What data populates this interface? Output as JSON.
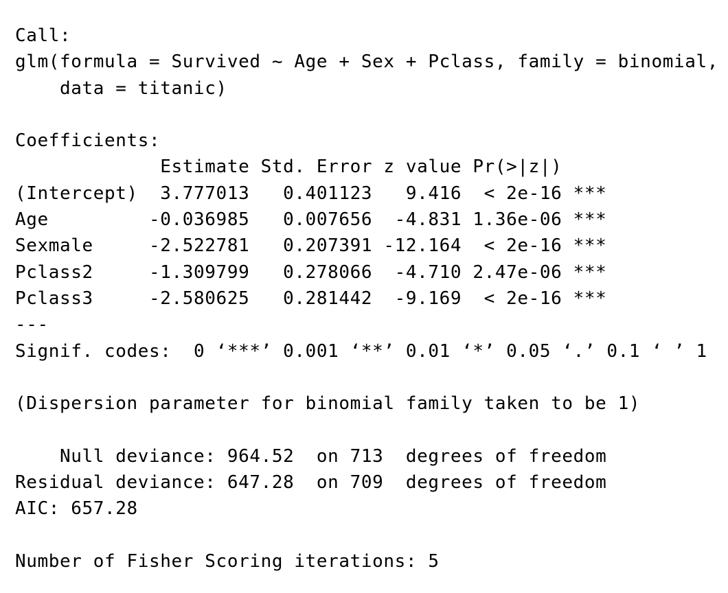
{
  "console": {
    "lines": [
      "Call:",
      "glm(formula = Survived ~ Age + Sex + Pclass, family = binomial, ",
      "    data = titanic)",
      "",
      "Coefficients:",
      "             Estimate Std. Error z value Pr(>|z|)    ",
      "(Intercept)  3.777013   0.401123   9.416  < 2e-16 ***",
      "Age         -0.036985   0.007656  -4.831 1.36e-06 ***",
      "Sexmale     -2.522781   0.207391 -12.164  < 2e-16 ***",
      "Pclass2     -1.309799   0.278066  -4.710 2.47e-06 ***",
      "Pclass3     -2.580625   0.281442  -9.169  < 2e-16 ***",
      "---",
      "Signif. codes:  0 ‘***’ 0.001 ‘**’ 0.01 ‘*’ 0.05 ‘.’ 0.1 ‘ ’ 1",
      "",
      "(Dispersion parameter for binomial family taken to be 1)",
      "",
      "    Null deviance: 964.52  on 713  degrees of freedom",
      "Residual deviance: 647.28  on 709  degrees of freedom",
      "AIC: 657.28",
      "",
      "Number of Fisher Scoring iterations: 5"
    ]
  }
}
